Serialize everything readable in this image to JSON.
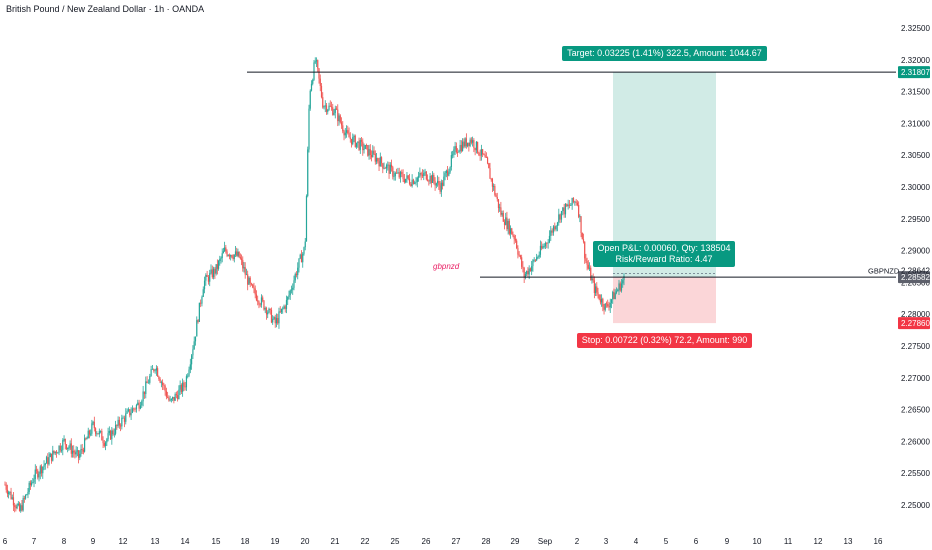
{
  "header": {
    "title": "British Pound / New Zealand Dollar · 1h · OANDA"
  },
  "colors": {
    "up": "#26a69a",
    "down": "#ef5350",
    "target_fill": "#d1ebe6",
    "stop_fill": "#fbd6d8",
    "target_label": "#089981",
    "stop_label": "#f23645",
    "line": "#131722"
  },
  "chart_data": {
    "type": "candlestick",
    "symbol_label": "GBPNZD",
    "annotation": "gbpnzd",
    "ylim": [
      2.2475,
      2.3275
    ],
    "y_ticks": [
      "2.32500",
      "2.32000",
      "2.31500",
      "2.31000",
      "2.30500",
      "2.30000",
      "2.29500",
      "2.29000",
      "2.28500",
      "2.28000",
      "2.27500",
      "2.27000",
      "2.26500",
      "2.26000",
      "2.25500",
      "2.25000"
    ],
    "x_ticks": [
      "6",
      "7",
      "8",
      "9",
      "12",
      "13",
      "14",
      "15",
      "18",
      "19",
      "20",
      "21",
      "22",
      "25",
      "26",
      "27",
      "28",
      "29",
      "Sep",
      "2",
      "3",
      "4",
      "5",
      "6",
      "9",
      "10",
      "11",
      "12",
      "13",
      "16"
    ],
    "price_tags": {
      "target": {
        "text": "2.31807",
        "value": 2.31807
      },
      "symbol": {
        "text": "2.28642",
        "value": 2.28642
      },
      "current": {
        "text": "2.28582",
        "value": 2.28582
      },
      "stop": {
        "text": "2.27860",
        "value": 2.2786
      }
    },
    "levels": [
      2.31807,
      2.28582
    ],
    "position": {
      "entry": 2.28582,
      "target": 2.31807,
      "stop": 2.2786,
      "target_label": "Target: 0.03225 (1.41%) 322.5, Amount: 1044.67",
      "stop_label": "Stop: 0.00722 (0.32%) 72.2, Amount: 990",
      "pnl_label": "Open P&L: 0.00060, Qty: 138504",
      "rr_label": "Risk/Reward Ratio: 4.47"
    },
    "price_path": [
      [
        0,
        2.2532
      ],
      [
        0.5,
        2.249
      ],
      [
        1,
        2.2545
      ],
      [
        2,
        2.26
      ],
      [
        2.5,
        2.2575
      ],
      [
        3,
        2.2625
      ],
      [
        3.4,
        2.26
      ],
      [
        4,
        2.2635
      ],
      [
        4.5,
        2.266
      ],
      [
        5,
        2.272
      ],
      [
        5.5,
        2.266
      ],
      [
        6,
        2.269
      ],
      [
        6.3,
        2.276
      ],
      [
        6.6,
        2.285
      ],
      [
        7,
        2.287
      ],
      [
        7.3,
        2.29
      ],
      [
        7.8,
        2.289
      ],
      [
        8.2,
        2.284
      ],
      [
        8.7,
        2.281
      ],
      [
        9,
        2.2785
      ],
      [
        9.4,
        2.282
      ],
      [
        9.8,
        2.288
      ],
      [
        10,
        2.2905
      ],
      [
        10.15,
        2.315
      ],
      [
        10.35,
        2.32
      ],
      [
        10.6,
        2.313
      ],
      [
        11,
        2.312
      ],
      [
        11.4,
        2.308
      ],
      [
        12,
        2.306
      ],
      [
        12.5,
        2.304
      ],
      [
        13,
        2.302
      ],
      [
        13.5,
        2.301
      ],
      [
        14,
        2.302
      ],
      [
        14.5,
        2.3
      ],
      [
        15,
        2.306
      ],
      [
        15.5,
        2.3075
      ],
      [
        16,
        2.304
      ],
      [
        16.5,
        2.296
      ],
      [
        17,
        2.292
      ],
      [
        17.3,
        2.286
      ],
      [
        17.6,
        2.288
      ],
      [
        18,
        2.291
      ],
      [
        18.5,
        2.296
      ],
      [
        19,
        2.298
      ],
      [
        19.3,
        2.2885
      ],
      [
        19.6,
        2.284
      ],
      [
        20,
        2.281
      ],
      [
        20.4,
        2.284
      ],
      [
        20.6,
        2.2855
      ]
    ]
  }
}
